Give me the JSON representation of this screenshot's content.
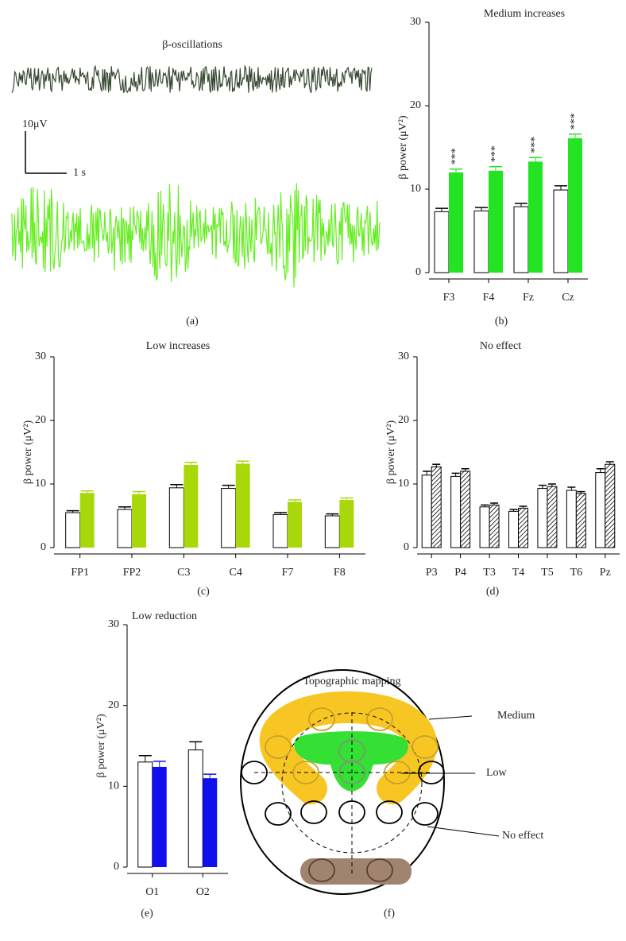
{
  "panel_a": {
    "title": "β-oscillations",
    "scale_y": "10μV",
    "scale_x": "1 s",
    "label": "(a)"
  },
  "chart_data": [
    {
      "type": "bar",
      "title": "Medium increases",
      "label": "(b)",
      "ylabel": "β power (μV²)",
      "categories": [
        "F3",
        "F4",
        "Fz",
        "Cz"
      ],
      "series": [
        {
          "color": "#ffffff",
          "values": [
            7.3,
            7.4,
            7.9,
            9.9
          ],
          "errors": [
            0.4,
            0.4,
            0.4,
            0.5
          ]
        },
        {
          "color": "#22e422",
          "values": [
            12.0,
            12.2,
            13.3,
            16.1
          ],
          "errors": [
            0.4,
            0.5,
            0.5,
            0.5
          ],
          "significance": [
            "***",
            "***",
            "***",
            "***"
          ]
        }
      ],
      "ylim": [
        0,
        30
      ],
      "yticks": [
        0,
        10,
        20,
        30
      ]
    },
    {
      "type": "bar",
      "title": "Low increases",
      "label": "(c)",
      "ylabel": "β power (μV²)",
      "categories": [
        "FP1",
        "FP2",
        "C3",
        "C4",
        "F7",
        "F8"
      ],
      "series": [
        {
          "color": "#ffffff",
          "values": [
            5.5,
            6.0,
            9.4,
            9.3,
            5.2,
            5.0
          ],
          "errors": [
            0.3,
            0.4,
            0.5,
            0.5,
            0.3,
            0.3
          ]
        },
        {
          "color": "#a8d80a",
          "values": [
            8.6,
            8.4,
            13.0,
            13.2,
            7.2,
            7.5
          ],
          "errors": [
            0.3,
            0.4,
            0.4,
            0.4,
            0.3,
            0.3
          ]
        }
      ],
      "ylim": [
        0,
        30
      ],
      "yticks": [
        0,
        10,
        20,
        30
      ]
    },
    {
      "type": "bar",
      "title": "No effect",
      "label": "(d)",
      "ylabel": "β power (μV²)",
      "categories": [
        "P3",
        "P4",
        "T3",
        "T4",
        "T5",
        "T6",
        "Pz"
      ],
      "series": [
        {
          "color": "#ffffff",
          "values": [
            11.4,
            11.2,
            6.4,
            5.7,
            9.3,
            9.0,
            11.8
          ],
          "errors": [
            0.6,
            0.5,
            0.3,
            0.3,
            0.5,
            0.5,
            0.6
          ]
        },
        {
          "color": "#ffffff",
          "pattern": "hatch",
          "values": [
            12.7,
            12.0,
            6.7,
            6.2,
            9.6,
            8.5,
            13.1
          ],
          "errors": [
            0.4,
            0.4,
            0.3,
            0.3,
            0.4,
            0.3,
            0.4
          ]
        }
      ],
      "ylim": [
        0,
        30
      ],
      "yticks": [
        0,
        10,
        20,
        30
      ]
    },
    {
      "type": "bar",
      "title": "Low reduction",
      "label": "(e)",
      "ylabel": "β power (μV²)",
      "categories": [
        "O1",
        "O2"
      ],
      "series": [
        {
          "color": "#ffffff",
          "values": [
            13.0,
            14.5
          ],
          "errors": [
            0.8,
            1.0
          ]
        },
        {
          "color": "#1010ee",
          "values": [
            12.4,
            11.0
          ],
          "errors": [
            0.7,
            0.5
          ]
        }
      ],
      "ylim": [
        0,
        30
      ],
      "yticks": [
        0,
        10,
        20,
        30
      ]
    }
  ],
  "panel_f": {
    "title": "Topographic mapping",
    "labels": [
      "Medium",
      "Low",
      "No effect"
    ],
    "label": "(f)"
  }
}
